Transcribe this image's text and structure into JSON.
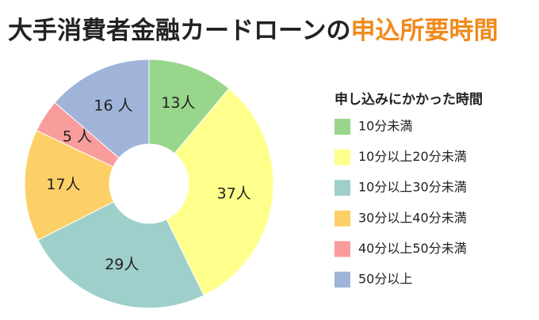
{
  "chart_data": {
    "type": "donut",
    "title": "大手消費者金融カードローンの",
    "title_highlight": "申込所要時間",
    "title_highlight_color": "#f08a1c",
    "legend_title": "申し込みにかかった時間",
    "categories": [
      "10分未満",
      "10分以上20分未満",
      "10分以上30分未満",
      "30分以上40分未満",
      "40分以上50分未満",
      "50分以上"
    ],
    "values": [
      13,
      37,
      29,
      17,
      5,
      16
    ],
    "value_labels": [
      "13人",
      "37人",
      "29人",
      "17人",
      "5 人",
      "16 人"
    ],
    "colors": [
      "#97d68b",
      "#ffff8c",
      "#9ecfca",
      "#fdd067",
      "#f99c9c",
      "#9fb4d8"
    ],
    "legend": "right"
  }
}
